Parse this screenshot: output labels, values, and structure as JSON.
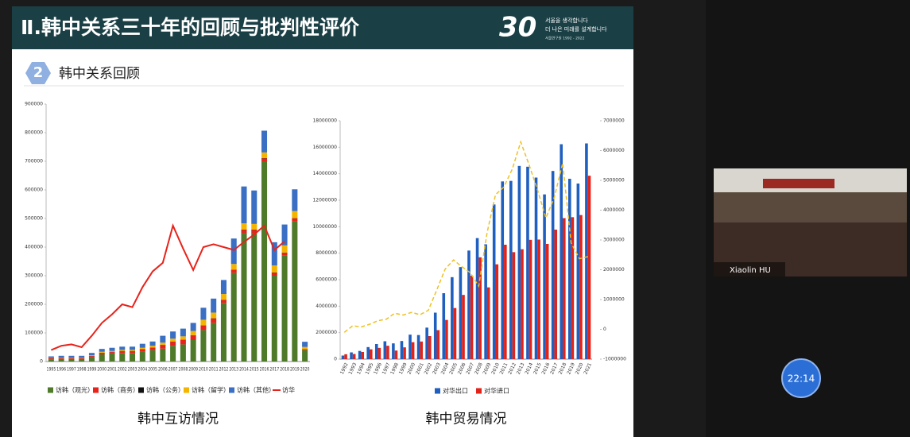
{
  "slide": {
    "title": "Ⅱ.韩中关系三十年的回顾与批判性评价",
    "section_number": "2",
    "section_title": "韩中关系回顾",
    "logo": {
      "number": "30",
      "line1": "서울을 생각합니다",
      "line2": "더 나은 미래를 설계합니다",
      "line3": "서울연구원 1992 - 2022"
    }
  },
  "meeting": {
    "participant": "Xiaolin HU",
    "timer": "22:14"
  },
  "chart_data": [
    {
      "type": "bar",
      "stacked": true,
      "title": "韩中互访情况",
      "categories": [
        "1995",
        "1996",
        "1997",
        "1998",
        "1999",
        "2000",
        "2001",
        "2002",
        "2003",
        "2004",
        "2005",
        "2006",
        "2007",
        "2008",
        "2009",
        "2010",
        "2011",
        "2012",
        "2013",
        "2014",
        "2015",
        "2016",
        "2017",
        "2018",
        "2019",
        "2020"
      ],
      "ylim": [
        0,
        900000
      ],
      "yticks": [
        0,
        100000,
        200000,
        300000,
        400000,
        500000,
        600000,
        700000,
        800000,
        900000
      ],
      "grid": false,
      "series": [
        {
          "name": "访韩（观光）",
          "type": "bar",
          "color": "#4e7a2a",
          "values": [
            8000,
            9000,
            9000,
            9000,
            15000,
            25000,
            28000,
            30000,
            30000,
            35000,
            40000,
            45000,
            55000,
            60000,
            75000,
            110000,
            135000,
            205000,
            310000,
            450000,
            450000,
            700000,
            300000,
            370000,
            490000,
            40000
          ]
        },
        {
          "name": "访韩（商务）",
          "type": "bar",
          "color": "#e8231b",
          "values": [
            3000,
            3000,
            3000,
            3000,
            4000,
            5000,
            5000,
            6000,
            6000,
            7000,
            8000,
            12000,
            14000,
            15000,
            16000,
            15000,
            15000,
            10000,
            10000,
            10000,
            10000,
            10000,
            10000,
            10000,
            10000,
            3000
          ]
        },
        {
          "name": "访韩（公务）",
          "type": "bar",
          "color": "#111111",
          "values": [
            1000,
            1000,
            1000,
            1000,
            1000,
            1000,
            1000,
            1000,
            1000,
            1000,
            1000,
            1000,
            1000,
            1000,
            1000,
            1000,
            1000,
            1000,
            1000,
            1000,
            1000,
            1000,
            1000,
            1000,
            1000,
            0
          ]
        },
        {
          "name": "访韩（留学）",
          "type": "bar",
          "color": "#f5b400",
          "values": [
            1000,
            1000,
            1000,
            1000,
            2000,
            3000,
            3000,
            4000,
            4000,
            5000,
            6000,
            8000,
            10000,
            12000,
            15000,
            20000,
            20000,
            20000,
            20000,
            22000,
            20000,
            20000,
            25000,
            25000,
            25000,
            8000
          ]
        },
        {
          "name": "访韩（其他）",
          "type": "bar",
          "color": "#3a6fc4",
          "values": [
            5000,
            6000,
            6000,
            6000,
            8000,
            10000,
            11000,
            11000,
            11000,
            14000,
            15000,
            24000,
            25000,
            27000,
            28000,
            42000,
            49000,
            49000,
            89000,
            129000,
            117000,
            76000,
            81000,
            73000,
            76000,
            18000
          ]
        },
        {
          "name": "访华",
          "type": "line",
          "color": "#e8231b",
          "values": [
            40000,
            55000,
            60000,
            50000,
            90000,
            135000,
            165000,
            200000,
            190000,
            260000,
            315000,
            345000,
            475000,
            395000,
            320000,
            400000,
            410000,
            400000,
            390000,
            418000,
            444000,
            475000,
            390000,
            420000,
            null,
            null
          ]
        }
      ]
    },
    {
      "type": "bar",
      "stacked": false,
      "title": "韩中贸易情况",
      "categories": [
        "1992",
        "1993",
        "1994",
        "1995",
        "1996",
        "1997",
        "1998",
        "1999",
        "2000",
        "2001",
        "2002",
        "2003",
        "2004",
        "2005",
        "2006",
        "2007",
        "2008",
        "2009",
        "2010",
        "2011",
        "2012",
        "2013",
        "2014",
        "2015",
        "2016",
        "2017",
        "2018",
        "2019",
        "2020",
        "2021"
      ],
      "ylim": [
        0,
        18000000
      ],
      "yticks": [
        0,
        2000000,
        4000000,
        6000000,
        8000000,
        10000000,
        12000000,
        14000000,
        16000000,
        18000000
      ],
      "y2lim": [
        -1000000,
        7000000
      ],
      "y2ticks": [
        -1000000,
        0,
        1000000,
        2000000,
        3000000,
        4000000,
        5000000,
        6000000,
        7000000
      ],
      "grid": false,
      "series": [
        {
          "name": "对华出口",
          "type": "bar",
          "color": "#1f5fbf",
          "values": [
            270000,
            510000,
            620000,
            910000,
            1140000,
            1350000,
            1190000,
            1370000,
            1850000,
            1820000,
            2380000,
            3510000,
            4980000,
            6190000,
            6950000,
            8200000,
            9140000,
            8670000,
            11680000,
            13420000,
            13460000,
            14590000,
            14530000,
            13710000,
            12440000,
            14210000,
            16230000,
            13620000,
            13260000,
            16290000
          ]
        },
        {
          "name": "对华进口",
          "type": "bar",
          "color": "#e2231a",
          "values": [
            370000,
            390000,
            540000,
            740000,
            850000,
            1010000,
            650000,
            890000,
            1280000,
            1330000,
            1740000,
            2190000,
            2960000,
            3860000,
            4850000,
            6300000,
            7690000,
            5420000,
            7160000,
            8640000,
            8080000,
            8300000,
            9010000,
            9030000,
            8700000,
            9780000,
            10650000,
            10720000,
            10880000,
            13850000
          ]
        },
        {
          "type": "line",
          "axis": "y2",
          "dashed": true,
          "color": "#f0c020",
          "values": [
            -100000,
            120000,
            80000,
            170000,
            290000,
            340000,
            540000,
            480000,
            570000,
            490000,
            640000,
            1320000,
            2020000,
            2330000,
            2100000,
            1900000,
            1450000,
            3250000,
            4520000,
            4780000,
            5380000,
            6290000,
            5520000,
            4680000,
            3740000,
            4430000,
            5580000,
            2900000,
            2370000,
            2440000
          ]
        }
      ]
    }
  ]
}
